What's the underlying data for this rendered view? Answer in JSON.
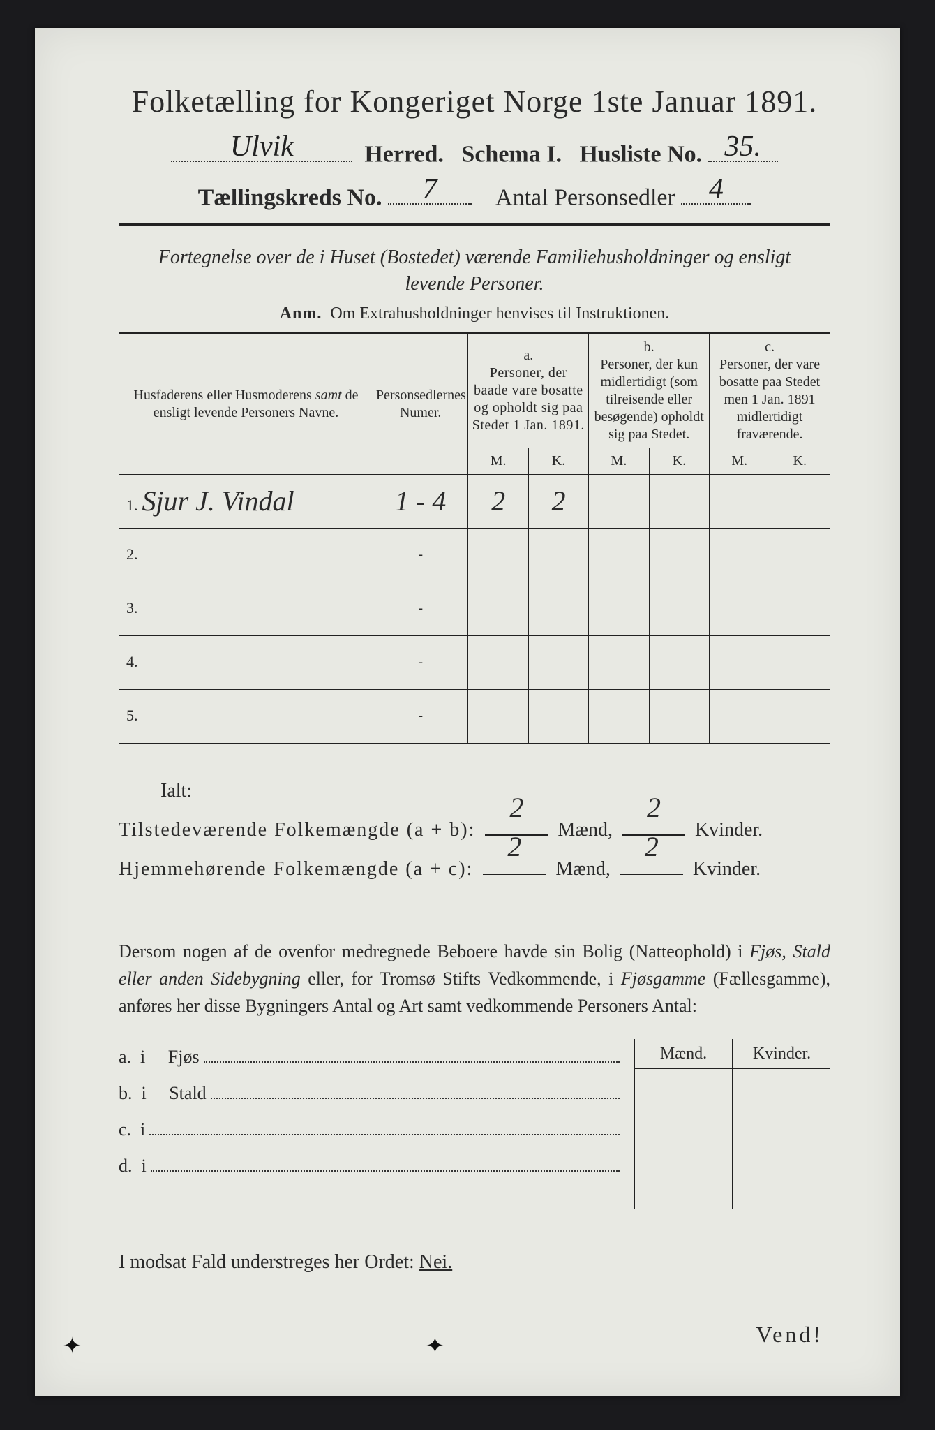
{
  "title": "Folketælling for Kongeriget Norge 1ste Januar 1891.",
  "header": {
    "herred_hand": "Ulvik",
    "herred_label": "Herred.",
    "schema_label": "Schema I.",
    "husliste_label": "Husliste No.",
    "husliste_hand": "35.",
    "kreds_label": "Tællingskreds No.",
    "kreds_hand": "7",
    "antal_label": "Antal Personsedler",
    "antal_hand": "4"
  },
  "intro_line1": "Fortegnelse over de i Huset (Bostedet) værende Familiehusholdninger og ensligt",
  "intro_line2": "levende Personer.",
  "anm_label": "Anm.",
  "anm_text": "Om Extrahusholdninger henvises til Instruktionen.",
  "columns": {
    "col1": "Husfaderens eller Husmoderens samt de ensligt levende Personers Navne.",
    "col1_italic_word": "samt",
    "col2": "Personsedlernes Numer.",
    "a_label": "a.",
    "a_text": "Personer, der baade vare bosatte og opholdt sig paa Stedet 1 Jan. 1891.",
    "b_label": "b.",
    "b_text": "Personer, der kun midlertidigt (som tilreisende eller besøgende) opholdt sig paa Stedet.",
    "c_label": "c.",
    "c_text": "Personer, der vare bosatte paa Stedet men 1 Jan. 1891 midlertidigt fraværende.",
    "M": "M.",
    "K": "K."
  },
  "rows": [
    {
      "num": "1.",
      "name": "Sjur J. Vindal",
      "numer": "1 - 4",
      "aM": "2",
      "aK": "2",
      "bM": "",
      "bK": "",
      "cM": "",
      "cK": ""
    },
    {
      "num": "2.",
      "name": "",
      "numer": "-",
      "aM": "",
      "aK": "",
      "bM": "",
      "bK": "",
      "cM": "",
      "cK": ""
    },
    {
      "num": "3.",
      "name": "",
      "numer": "-",
      "aM": "",
      "aK": "",
      "bM": "",
      "bK": "",
      "cM": "",
      "cK": ""
    },
    {
      "num": "4.",
      "name": "",
      "numer": "-",
      "aM": "",
      "aK": "",
      "bM": "",
      "bK": "",
      "cM": "",
      "cK": ""
    },
    {
      "num": "5.",
      "name": "",
      "numer": "-",
      "aM": "",
      "aK": "",
      "bM": "",
      "bK": "",
      "cM": "",
      "cK": ""
    }
  ],
  "totals": {
    "ialt": "Ialt:",
    "line1_label": "Tilstedeværende Folkemængde (a + b):",
    "line2_label": "Hjemmehørende Folkemængde (a + c):",
    "maend": "Mænd,",
    "kvinder": "Kvinder.",
    "t_m": "2",
    "t_k": "2",
    "h_m": "2",
    "h_k": "2"
  },
  "para": {
    "text_pre": "Dersom nogen af de ovenfor medregnede Beboere havde sin Bolig (Natteophold) i ",
    "it1": "Fjøs, Stald eller anden Sidebygning",
    "mid": " eller, for Tromsø Stifts Vedkommende, i ",
    "it2": "Fjøsgamme",
    "mid2": " (Fællesgamme), anføres her disse Bygningers Antal og Art samt vedkommende Personers Antal:"
  },
  "sideheaders": {
    "maend": "Mænd.",
    "kvinder": "Kvinder."
  },
  "sidelist": [
    {
      "label": "a.  i     Fjøs"
    },
    {
      "label": "b.  i     Stald"
    },
    {
      "label": "c.  i"
    },
    {
      "label": "d.  i"
    }
  ],
  "footer": {
    "text_pre": "I modsat Fald understreges her Ordet: ",
    "nei": "Nei."
  },
  "vend": "Vend!",
  "colors": {
    "paper": "#e8e9e3",
    "ink": "#2a2a2a",
    "background": "#1a1a1d"
  }
}
